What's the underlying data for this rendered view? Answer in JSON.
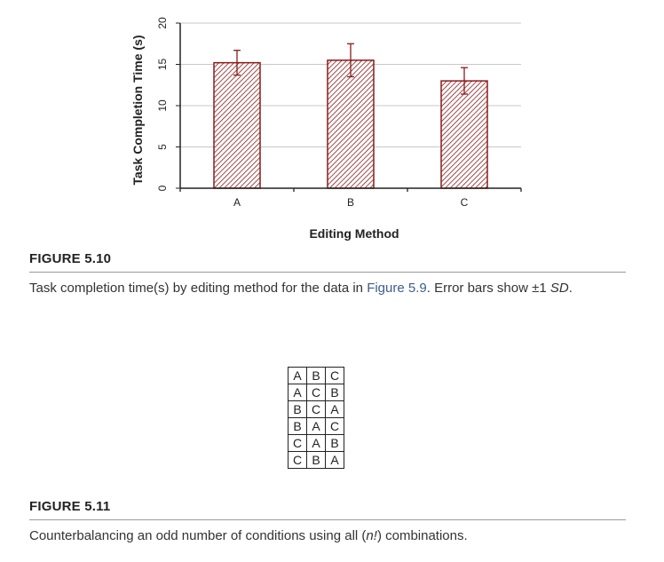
{
  "chart_data": {
    "type": "bar",
    "categories": [
      "A",
      "B",
      "C"
    ],
    "values": [
      15.2,
      15.5,
      13.0
    ],
    "error_sd": [
      1.5,
      2.0,
      1.6
    ],
    "xlabel": "Editing Method",
    "ylabel": "Task Completion Time (s)",
    "ylim": [
      0,
      20
    ],
    "yticks": [
      "0",
      "5",
      "10",
      "15",
      "20"
    ],
    "grid": true,
    "bar_color": "#8b1a1a",
    "bar_fill": "hatched"
  },
  "figure1": {
    "label": "FIGURE 5.10",
    "caption_before": "Task completion time(s) by editing method for the data in ",
    "caption_link": "Figure 5.9",
    "caption_mid": ". Error bars show ±1 ",
    "caption_italic": "SD",
    "caption_end": "."
  },
  "figure2": {
    "label": "FIGURE 5.11",
    "table": [
      [
        "A",
        "B",
        "C"
      ],
      [
        "A",
        "C",
        "B"
      ],
      [
        "B",
        "C",
        "A"
      ],
      [
        "B",
        "A",
        "C"
      ],
      [
        "C",
        "A",
        "B"
      ],
      [
        "C",
        "B",
        "A"
      ]
    ],
    "caption_before": "Counterbalancing an odd number of conditions using all (",
    "caption_italic": "n!",
    "caption_end": ") combinations."
  }
}
